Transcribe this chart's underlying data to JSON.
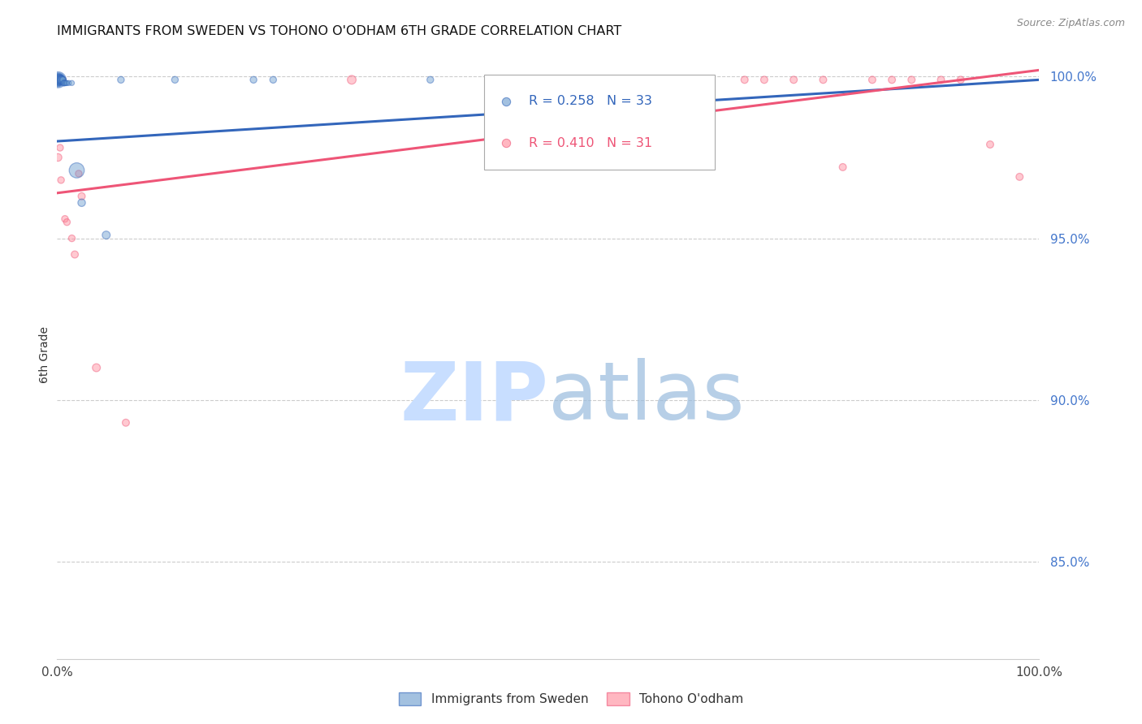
{
  "title": "IMMIGRANTS FROM SWEDEN VS TOHONO O'ODHAM 6TH GRADE CORRELATION CHART",
  "source": "Source: ZipAtlas.com",
  "ylabel": "6th Grade",
  "ytick_labels": [
    "100.0%",
    "95.0%",
    "90.0%",
    "85.0%"
  ],
  "ytick_values": [
    1.0,
    0.95,
    0.9,
    0.85
  ],
  "legend_entry1": "R = 0.258   N = 33",
  "legend_entry2": "R = 0.410   N = 31",
  "legend_label1": "Immigrants from Sweden",
  "legend_label2": "Tohono O'odham",
  "color_blue": "#6699CC",
  "color_pink": "#FF8899",
  "color_blue_line": "#3366BB",
  "color_pink_line": "#EE5577",
  "blue_x": [
    0.001,
    0.001,
    0.001,
    0.002,
    0.002,
    0.002,
    0.002,
    0.003,
    0.003,
    0.003,
    0.004,
    0.004,
    0.004,
    0.004,
    0.005,
    0.005,
    0.006,
    0.006,
    0.007,
    0.007,
    0.008,
    0.009,
    0.01,
    0.012,
    0.015,
    0.02,
    0.025,
    0.05,
    0.065,
    0.12,
    0.2,
    0.22,
    0.38
  ],
  "blue_y": [
    0.999,
    0.999,
    0.999,
    0.999,
    0.999,
    0.999,
    0.999,
    0.999,
    0.999,
    0.999,
    0.999,
    0.999,
    0.999,
    0.999,
    0.999,
    0.999,
    0.999,
    0.999,
    0.998,
    0.998,
    0.998,
    0.998,
    0.998,
    0.998,
    0.998,
    0.971,
    0.961,
    0.951,
    0.999,
    0.999,
    0.999,
    0.999,
    0.999
  ],
  "blue_sizes": [
    200,
    150,
    120,
    100,
    90,
    80,
    70,
    60,
    60,
    50,
    50,
    45,
    40,
    40,
    35,
    35,
    30,
    30,
    25,
    25,
    22,
    22,
    20,
    20,
    20,
    180,
    45,
    50,
    35,
    35,
    35,
    35,
    35
  ],
  "pink_x": [
    0.001,
    0.002,
    0.003,
    0.004,
    0.005,
    0.006,
    0.008,
    0.01,
    0.015,
    0.018,
    0.022,
    0.025,
    0.04,
    0.07,
    0.3,
    0.5,
    0.55,
    0.6,
    0.65,
    0.7,
    0.72,
    0.75,
    0.78,
    0.8,
    0.83,
    0.85,
    0.87,
    0.9,
    0.92,
    0.95,
    0.98
  ],
  "pink_y": [
    0.975,
    0.999,
    0.978,
    0.968,
    0.999,
    0.999,
    0.956,
    0.955,
    0.95,
    0.945,
    0.97,
    0.963,
    0.91,
    0.893,
    0.999,
    0.999,
    0.999,
    0.999,
    0.999,
    0.999,
    0.999,
    0.999,
    0.999,
    0.972,
    0.999,
    0.999,
    0.999,
    0.999,
    0.999,
    0.979,
    0.969
  ],
  "pink_sizes": [
    45,
    40,
    35,
    35,
    30,
    30,
    35,
    35,
    35,
    40,
    35,
    40,
    50,
    40,
    60,
    40,
    40,
    40,
    40,
    40,
    40,
    40,
    40,
    40,
    40,
    40,
    40,
    40,
    40,
    40,
    40
  ],
  "xlim": [
    0.0,
    1.0
  ],
  "ylim": [
    0.82,
    1.008
  ],
  "blue_trend": [
    0.0,
    1.0,
    0.98,
    0.999
  ],
  "pink_trend": [
    0.0,
    1.0,
    0.964,
    1.002
  ],
  "grid_color": "#cccccc",
  "axis_label_color": "#4477CC",
  "title_fontsize": 11.5,
  "watermark_zip_color": "#C8DEFF",
  "watermark_atlas_color": "#99BBDD"
}
